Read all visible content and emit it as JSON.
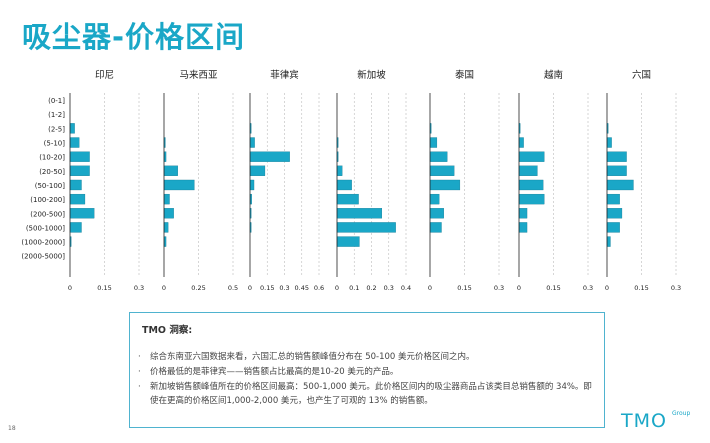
{
  "page": {
    "title": "吸尘器-价格区间",
    "page_number": "18",
    "logo_text": "TMO",
    "logo_group": "Group"
  },
  "insights": {
    "title": "TMO 洞察:",
    "bullet_char": "·",
    "bullets": [
      "综合东南亚六国数据来看，六国汇总的销售额峰值分布在 50-100 美元价格区间之内。",
      "价格最低的是菲律宾——销售额占比最高的是10-20 美元的产品。",
      "新加坡销售额峰值所在的价格区间最高：500-1,000 美元。此价格区间内的吸尘器商品占该类目总销售额的 34%。即使在更高的价格区间1,000-2,000 美元，也产生了可观的 13% 的销售额。"
    ]
  },
  "colors": {
    "accent": "#1aa7c7",
    "bar": "#1aa7c7",
    "bar_border": "#0b6e88",
    "axis": "#222222",
    "grid": "#bbbbbb"
  },
  "chart_data": {
    "type": "bar",
    "orientation": "horizontal",
    "categories": [
      "(0-1]",
      "(1-2]",
      "(2-5]",
      "(5-10]",
      "(10-20]",
      "(20-50]",
      "(50-100]",
      "(100-200]",
      "(200-500]",
      "(500-1000]",
      "(1000-2000]",
      "(2000-5000]"
    ],
    "panels": [
      {
        "name": "印尼",
        "xlim": [
          0,
          0.3
        ],
        "ticks": [
          0,
          0.15,
          0.3
        ],
        "tick_labels": [
          "0",
          "0.15",
          "0.3"
        ],
        "values": [
          0,
          0,
          0.02,
          0.04,
          0.085,
          0.085,
          0.05,
          0.065,
          0.105,
          0.05,
          0.005,
          0
        ]
      },
      {
        "name": "马来西亚",
        "xlim": [
          0,
          0.5
        ],
        "ticks": [
          0,
          0.25,
          0.5
        ],
        "tick_labels": [
          "0",
          "0.25",
          "0.5"
        ],
        "values": [
          0,
          0,
          0,
          0.01,
          0.015,
          0.1,
          0.22,
          0.04,
          0.07,
          0.03,
          0.015,
          0
        ]
      },
      {
        "name": "菲律宾",
        "xlim": [
          0,
          0.6
        ],
        "ticks": [
          0,
          0.15,
          0.3,
          0.45,
          0.6
        ],
        "tick_labels": [
          "0",
          "0.15",
          "0.3",
          "0.45",
          "0.6"
        ],
        "values": [
          0,
          0,
          0.005,
          0.04,
          0.345,
          0.13,
          0.035,
          0.015,
          0.01,
          0.005,
          0,
          0
        ]
      },
      {
        "name": "新加坡",
        "xlim": [
          0,
          0.4
        ],
        "ticks": [
          0,
          0.1,
          0.2,
          0.3,
          0.4
        ],
        "tick_labels": [
          "0",
          "0.1",
          "0.2",
          "0.3",
          "0.4"
        ],
        "values": [
          0,
          0,
          0,
          0.005,
          0.005,
          0.03,
          0.085,
          0.125,
          0.26,
          0.34,
          0.13,
          0
        ]
      },
      {
        "name": "泰国",
        "xlim": [
          0,
          0.3
        ],
        "ticks": [
          0,
          0.15,
          0.3
        ],
        "tick_labels": [
          "0",
          "0.15",
          "0.3"
        ],
        "values": [
          0,
          0,
          0.005,
          0.03,
          0.075,
          0.105,
          0.13,
          0.04,
          0.06,
          0.05,
          0,
          0
        ]
      },
      {
        "name": "越南",
        "xlim": [
          0,
          0.3
        ],
        "ticks": [
          0,
          0.15,
          0.3
        ],
        "tick_labels": [
          "0",
          "0.15",
          "0.3"
        ],
        "values": [
          0,
          0,
          0.005,
          0.02,
          0.11,
          0.08,
          0.105,
          0.11,
          0.035,
          0.035,
          0,
          0
        ]
      },
      {
        "name": "六国",
        "xlim": [
          0,
          0.3
        ],
        "ticks": [
          0,
          0.15,
          0.3
        ],
        "tick_labels": [
          "0",
          "0.15",
          "0.3"
        ],
        "values": [
          0,
          0,
          0.005,
          0.02,
          0.085,
          0.085,
          0.115,
          0.055,
          0.065,
          0.055,
          0.015,
          0
        ]
      }
    ]
  }
}
